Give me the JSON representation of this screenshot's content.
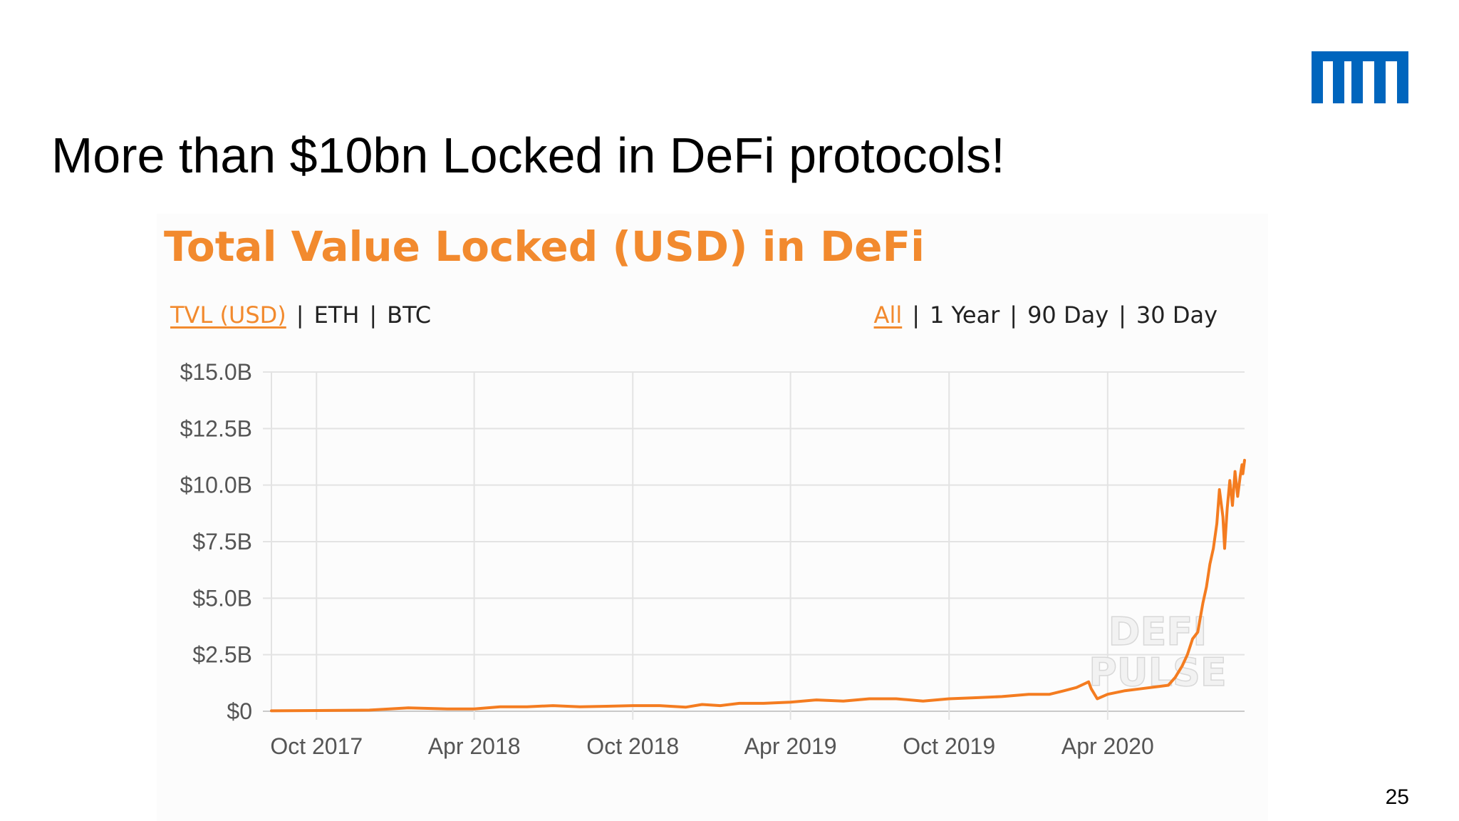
{
  "slide": {
    "title": "More than $10bn Locked in DeFi protocols!",
    "page_number": "25",
    "logo_text": "TUM"
  },
  "chart_header": {
    "title": "Total Value Locked (USD) in DeFi",
    "units": [
      {
        "label": "TVL (USD)",
        "active": true
      },
      {
        "label": "ETH",
        "active": false
      },
      {
        "label": "BTC",
        "active": false
      }
    ],
    "ranges": [
      {
        "label": "All",
        "active": true
      },
      {
        "label": "1 Year",
        "active": false
      },
      {
        "label": "90 Day",
        "active": false
      },
      {
        "label": "30 Day",
        "active": false
      }
    ]
  },
  "watermark": {
    "line1": "DEFI",
    "line2": "PULSE"
  },
  "colors": {
    "accent": "#f28a2e",
    "line": "#f47c20",
    "grid": "#e3e3e3",
    "logo": "#0065bd"
  },
  "chart_data": {
    "type": "line",
    "title": "Total Value Locked (USD) in DeFi",
    "xlabel": "",
    "ylabel": "",
    "ylim": [
      0,
      15
    ],
    "y_unit": "billion USD",
    "y_ticks": [
      0,
      2.5,
      5,
      7.5,
      10,
      12.5,
      15
    ],
    "y_tick_labels": [
      "$0",
      "$2.5B",
      "$5.0B",
      "$7.5B",
      "$10.0B",
      "$12.5B",
      "$15.0B"
    ],
    "x_ticks": [
      "2017-10-01",
      "2018-04-01",
      "2018-10-01",
      "2019-04-01",
      "2019-10-01",
      "2020-04-01"
    ],
    "x_tick_labels": [
      "Oct 2017",
      "Apr 2018",
      "Oct 2018",
      "Apr 2019",
      "Oct 2019",
      "Apr 2020"
    ],
    "xlim": [
      "2017-08-10",
      "2020-09-06"
    ],
    "grid": true,
    "legend": "none",
    "series": [
      {
        "x": [
          "2017-08-10",
          "2017-10-01",
          "2017-12-01",
          "2018-01-15",
          "2018-03-01",
          "2018-04-01",
          "2018-05-01",
          "2018-06-01",
          "2018-07-01",
          "2018-08-01",
          "2018-09-01",
          "2018-10-01",
          "2018-11-01",
          "2018-12-01",
          "2018-12-20",
          "2019-01-10",
          "2019-02-01",
          "2019-03-01",
          "2019-04-01",
          "2019-05-01",
          "2019-06-01",
          "2019-07-01",
          "2019-08-01",
          "2019-09-01",
          "2019-10-01",
          "2019-11-01",
          "2019-12-01",
          "2020-01-01",
          "2020-01-25",
          "2020-02-10",
          "2020-02-25",
          "2020-03-10",
          "2020-03-13",
          "2020-03-20",
          "2020-04-01",
          "2020-04-20",
          "2020-05-10",
          "2020-05-31",
          "2020-06-10",
          "2020-06-18",
          "2020-06-26",
          "2020-07-02",
          "2020-07-08",
          "2020-07-14",
          "2020-07-20",
          "2020-07-24",
          "2020-07-28",
          "2020-08-01",
          "2020-08-05",
          "2020-08-08",
          "2020-08-12",
          "2020-08-14",
          "2020-08-17",
          "2020-08-20",
          "2020-08-23",
          "2020-08-26",
          "2020-08-29",
          "2020-09-01",
          "2020-09-03",
          "2020-09-04",
          "2020-09-06"
        ],
        "values": [
          0.02,
          0.03,
          0.05,
          0.15,
          0.1,
          0.1,
          0.2,
          0.2,
          0.25,
          0.2,
          0.22,
          0.25,
          0.25,
          0.18,
          0.3,
          0.25,
          0.35,
          0.35,
          0.4,
          0.5,
          0.45,
          0.55,
          0.55,
          0.45,
          0.55,
          0.6,
          0.65,
          0.75,
          0.75,
          0.9,
          1.05,
          1.3,
          1.0,
          0.55,
          0.75,
          0.9,
          1.0,
          1.1,
          1.15,
          1.5,
          2.0,
          2.5,
          3.2,
          3.5,
          4.8,
          5.5,
          6.5,
          7.2,
          8.3,
          9.8,
          8.6,
          7.2,
          9.0,
          10.2,
          9.1,
          10.6,
          9.5,
          10.4,
          10.9,
          10.5,
          11.1
        ]
      }
    ]
  }
}
